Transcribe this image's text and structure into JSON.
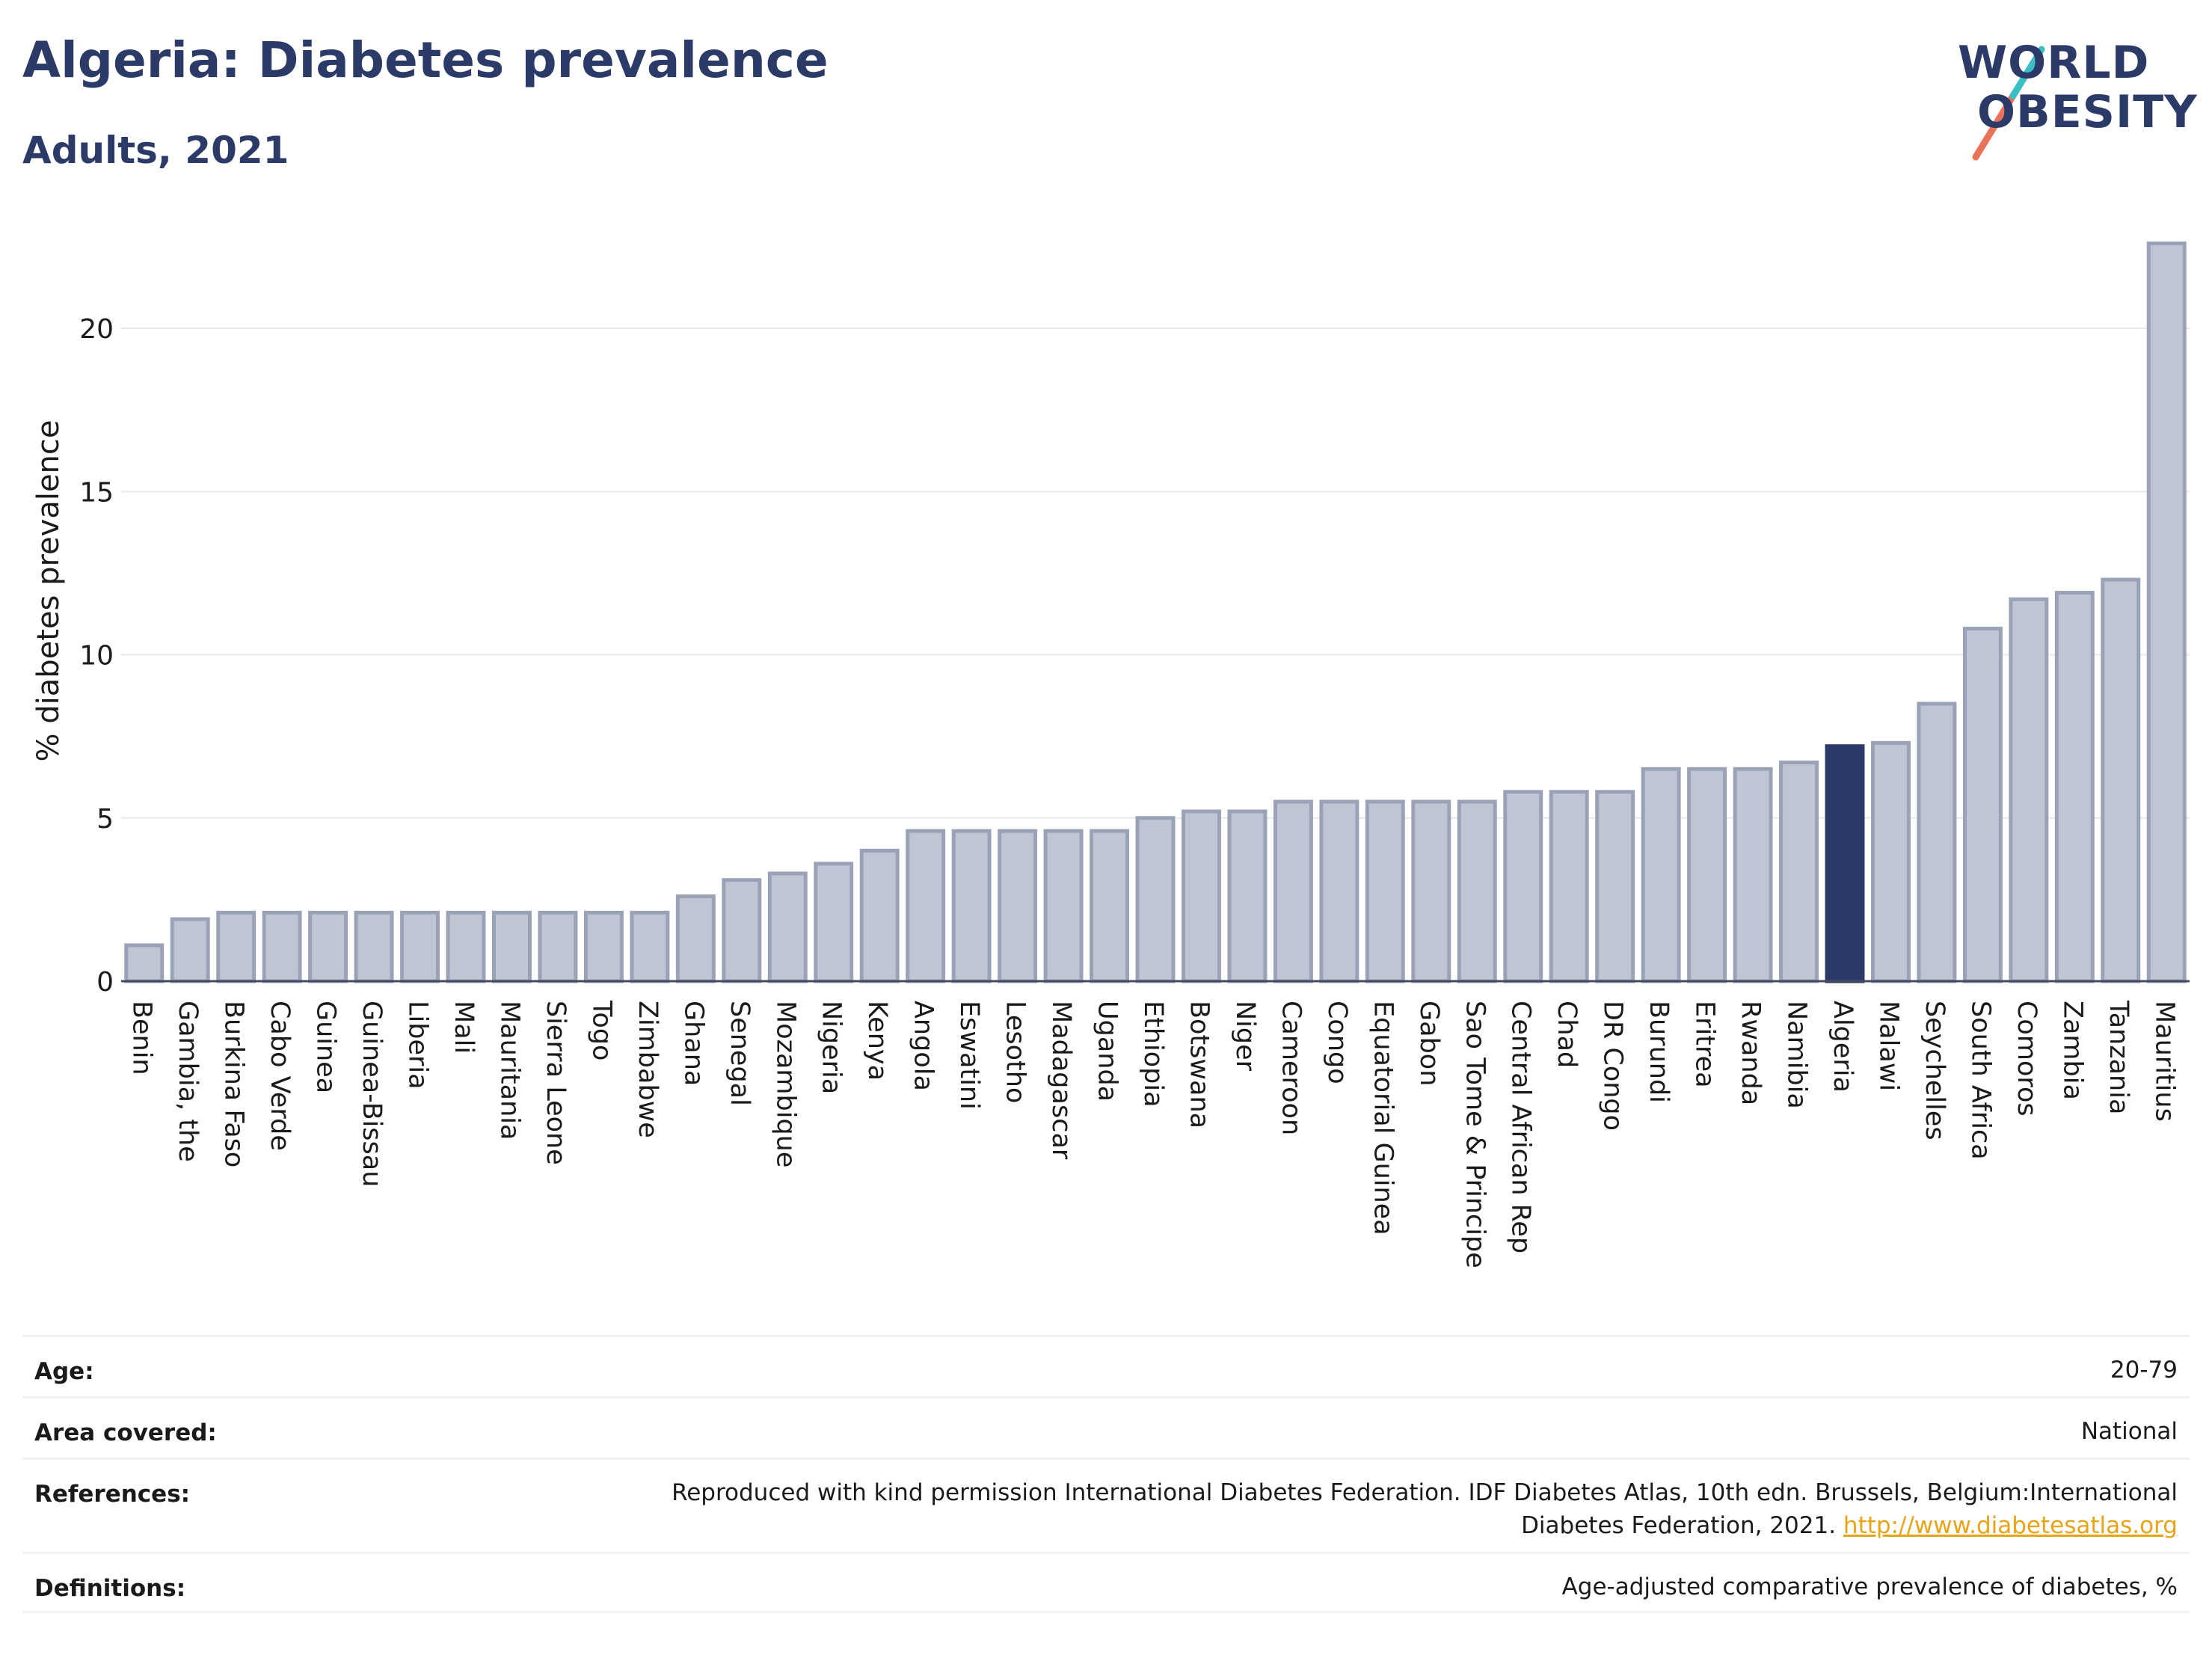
{
  "header": {
    "title": "Algeria: Diabetes prevalence",
    "subtitle": "Adults, 2021"
  },
  "logo": {
    "line1": "WORLD",
    "line2": "OBESITY",
    "slash_colors": [
      "#e8735a",
      "#3bbfc4"
    ]
  },
  "chart_data": {
    "type": "bar",
    "title": "Algeria: Diabetes prevalence",
    "subtitle": "Adults, 2021",
    "xlabel": "",
    "ylabel": "% diabetes prevalence",
    "ylim": [
      0,
      23
    ],
    "yticks": [
      0,
      5,
      10,
      15,
      20
    ],
    "grid": true,
    "highlight": "Algeria",
    "highlight_color": "#2b3a67",
    "bar_color": "#c0c5d4",
    "bar_edge_color": "#9aa2b8",
    "categories": [
      "Benin",
      "Gambia, the",
      "Burkina Faso",
      "Cabo Verde",
      "Guinea",
      "Guinea-Bissau",
      "Liberia",
      "Mali",
      "Mauritania",
      "Sierra Leone",
      "Togo",
      "Zimbabwe",
      "Ghana",
      "Senegal",
      "Mozambique",
      "Nigeria",
      "Kenya",
      "Angola",
      "Eswatini",
      "Lesotho",
      "Madagascar",
      "Uganda",
      "Ethiopia",
      "Botswana",
      "Niger",
      "Cameroon",
      "Congo",
      "Equatorial Guinea",
      "Gabon",
      "Sao Tome & Principe",
      "Central African Rep",
      "Chad",
      "DR Congo",
      "Burundi",
      "Eritrea",
      "Rwanda",
      "Namibia",
      "Algeria",
      "Malawi",
      "Seychelles",
      "South Africa",
      "Comoros",
      "Zambia",
      "Tanzania",
      "Mauritius"
    ],
    "values": [
      1.1,
      1.9,
      2.1,
      2.1,
      2.1,
      2.1,
      2.1,
      2.1,
      2.1,
      2.1,
      2.1,
      2.1,
      2.6,
      3.1,
      3.3,
      3.6,
      4.0,
      4.6,
      4.6,
      4.6,
      4.6,
      4.6,
      5.0,
      5.2,
      5.2,
      5.5,
      5.5,
      5.5,
      5.5,
      5.5,
      5.8,
      5.8,
      5.8,
      6.5,
      6.5,
      6.5,
      6.7,
      7.2,
      7.3,
      8.5,
      10.8,
      11.7,
      11.9,
      12.3,
      22.6
    ]
  },
  "meta": {
    "age_label": "Age:",
    "age_value": "20-79",
    "area_label": "Area covered:",
    "area_value": "National",
    "references_label": "References:",
    "references_value": "Reproduced with kind permission International Diabetes Federation.  IDF Diabetes Atlas, 10th edn. Brussels, Belgium:International Diabetes Federation, 2021.",
    "references_link": "http://www.diabetesatlas.org",
    "definitions_label": "Definitions:",
    "definitions_value": "Age-adjusted comparative prevalence of diabetes, %"
  }
}
